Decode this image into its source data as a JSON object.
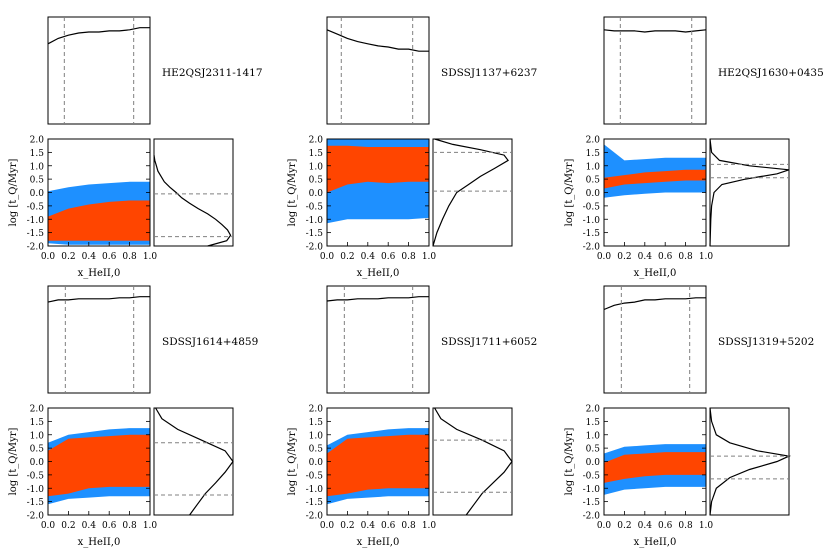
{
  "figure": {
    "xlabel": "x_HeII,0",
    "ylabel": "log [t_Q/Myr]",
    "x_ticks": [
      "0.0",
      "0.2",
      "0.4",
      "0.6",
      "0.8",
      "1.0"
    ],
    "y_ticks": [
      "-2.0",
      "-1.5",
      "-1.0",
      "-0.5",
      "0.0",
      "0.5",
      "1.0",
      "1.5",
      "2.0"
    ],
    "colors": {
      "outer_band": "#1E90FF",
      "inner_band": "#FF4500",
      "line": "#000000",
      "guide": "#808080"
    }
  },
  "chart_data": [
    {
      "type": "area",
      "quasar": "HE2QSJ2311-1417",
      "xlim": [
        0,
        1
      ],
      "ylim": [
        -2,
        2
      ],
      "x_marginal": {
        "xs": [
          0.0,
          0.1,
          0.2,
          0.3,
          0.4,
          0.5,
          0.6,
          0.7,
          0.8,
          0.9,
          1.0
        ],
        "ys": [
          0.75,
          0.8,
          0.83,
          0.85,
          0.86,
          0.86,
          0.87,
          0.87,
          0.88,
          0.9,
          0.9
        ],
        "ylim": [
          0,
          1
        ],
        "guides": [
          0.16,
          0.84
        ]
      },
      "outer_band": {
        "x": [
          0.0,
          0.2,
          0.4,
          0.6,
          0.8,
          1.0
        ],
        "upper": [
          0.05,
          0.2,
          0.3,
          0.35,
          0.4,
          0.4
        ],
        "lower": [
          -1.9,
          -1.95,
          -1.95,
          -1.95,
          -1.95,
          -1.95
        ]
      },
      "inner_band": {
        "x": [
          0.0,
          0.2,
          0.4,
          0.6,
          0.8,
          1.0
        ],
        "upper": [
          -0.9,
          -0.6,
          -0.45,
          -0.35,
          -0.3,
          -0.3
        ],
        "lower": [
          -1.8,
          -1.8,
          -1.8,
          -1.8,
          -1.8,
          -1.8
        ]
      },
      "y_marginal": {
        "ys": [
          -2.0,
          -1.8,
          -1.6,
          -1.4,
          -1.2,
          -1.0,
          -0.8,
          -0.6,
          -0.4,
          -0.2,
          0.0,
          0.2,
          0.4,
          0.6,
          0.8,
          1.0,
          1.2,
          1.4
        ],
        "xs": [
          0.68,
          0.92,
          0.97,
          0.93,
          0.86,
          0.78,
          0.68,
          0.56,
          0.45,
          0.35,
          0.28,
          0.2,
          0.13,
          0.09,
          0.05,
          0.03,
          0.01,
          0.0
        ],
        "guides": [
          -1.65,
          -0.05
        ]
      }
    },
    {
      "type": "area",
      "quasar": "SDSSJ1137+6237",
      "xlim": [
        0,
        1
      ],
      "ylim": [
        -2,
        2
      ],
      "x_marginal": {
        "xs": [
          0.0,
          0.1,
          0.2,
          0.3,
          0.4,
          0.5,
          0.6,
          0.7,
          0.8,
          0.9,
          1.0
        ],
        "ys": [
          0.88,
          0.84,
          0.8,
          0.77,
          0.75,
          0.73,
          0.72,
          0.7,
          0.7,
          0.68,
          0.68
        ],
        "ylim": [
          0,
          1
        ],
        "guides": [
          0.14,
          0.84
        ]
      },
      "outer_band": {
        "x": [
          0.0,
          0.2,
          0.4,
          0.6,
          0.8,
          1.0
        ],
        "upper": [
          2.0,
          2.0,
          2.0,
          2.0,
          2.0,
          2.0
        ],
        "lower": [
          -1.15,
          -1.0,
          -1.0,
          -1.0,
          -1.0,
          -0.95
        ]
      },
      "inner_band": {
        "x": [
          0.0,
          0.2,
          0.4,
          0.6,
          0.8,
          1.0
        ],
        "upper": [
          1.75,
          1.75,
          1.7,
          1.7,
          1.7,
          1.7
        ],
        "lower": [
          0.0,
          0.3,
          0.4,
          0.35,
          0.4,
          0.4
        ]
      },
      "y_marginal": {
        "ys": [
          -2.0,
          -1.5,
          -1.0,
          -0.5,
          0.0,
          0.3,
          0.6,
          0.9,
          1.2,
          1.4,
          1.6,
          1.8,
          2.0
        ],
        "xs": [
          0.0,
          0.05,
          0.12,
          0.2,
          0.3,
          0.45,
          0.6,
          0.78,
          0.95,
          0.9,
          0.6,
          0.25,
          0.02
        ],
        "guides": [
          1.5,
          0.05
        ]
      }
    },
    {
      "type": "area",
      "quasar": "HE2QSJ1630+0435",
      "xlim": [
        0,
        1
      ],
      "ylim": [
        -2,
        2
      ],
      "x_marginal": {
        "xs": [
          0.0,
          0.1,
          0.2,
          0.3,
          0.4,
          0.5,
          0.6,
          0.7,
          0.8,
          0.9,
          1.0
        ],
        "ys": [
          0.88,
          0.87,
          0.87,
          0.87,
          0.86,
          0.87,
          0.87,
          0.87,
          0.86,
          0.87,
          0.88
        ],
        "ylim": [
          0,
          1
        ],
        "guides": [
          0.16,
          0.86
        ]
      },
      "outer_band": {
        "x": [
          0.0,
          0.2,
          0.4,
          0.6,
          0.8,
          1.0
        ],
        "upper": [
          1.8,
          1.2,
          1.25,
          1.3,
          1.3,
          1.3
        ],
        "lower": [
          -0.2,
          -0.1,
          -0.05,
          0.0,
          0.0,
          0.0
        ]
      },
      "inner_band": {
        "x": [
          0.0,
          0.2,
          0.4,
          0.6,
          0.8,
          1.0
        ],
        "upper": [
          0.55,
          0.65,
          0.75,
          0.8,
          0.85,
          0.85
        ],
        "lower": [
          0.15,
          0.3,
          0.35,
          0.4,
          0.45,
          0.45
        ]
      },
      "y_marginal": {
        "ys": [
          -2.0,
          -1.0,
          -0.5,
          0.0,
          0.3,
          0.5,
          0.7,
          0.85,
          1.0,
          1.2,
          1.5,
          2.0
        ],
        "xs": [
          0.0,
          0.01,
          0.02,
          0.05,
          0.15,
          0.45,
          0.85,
          1.0,
          0.5,
          0.12,
          0.02,
          0.0
        ],
        "guides": [
          1.05,
          0.55
        ]
      }
    },
    {
      "type": "area",
      "quasar": "SDSSJ1614+4859",
      "xlim": [
        0,
        1
      ],
      "ylim": [
        -2,
        2
      ],
      "x_marginal": {
        "xs": [
          0.0,
          0.1,
          0.2,
          0.3,
          0.4,
          0.5,
          0.6,
          0.7,
          0.8,
          0.9,
          1.0
        ],
        "ys": [
          0.85,
          0.87,
          0.87,
          0.88,
          0.88,
          0.88,
          0.88,
          0.89,
          0.89,
          0.9,
          0.9
        ],
        "ylim": [
          0,
          1
        ],
        "guides": [
          0.17,
          0.84
        ]
      },
      "outer_band": {
        "x": [
          0.0,
          0.2,
          0.4,
          0.6,
          0.8,
          1.0
        ],
        "upper": [
          0.7,
          1.0,
          1.1,
          1.2,
          1.25,
          1.25
        ],
        "lower": [
          -1.6,
          -1.4,
          -1.35,
          -1.3,
          -1.3,
          -1.3
        ]
      },
      "inner_band": {
        "x": [
          0.0,
          0.2,
          0.4,
          0.6,
          0.8,
          1.0
        ],
        "upper": [
          0.4,
          0.85,
          0.9,
          0.95,
          1.0,
          1.0
        ],
        "lower": [
          -1.3,
          -1.2,
          -1.0,
          -0.95,
          -0.95,
          -0.95
        ]
      },
      "y_marginal": {
        "ys": [
          -2.0,
          -1.6,
          -1.2,
          -0.8,
          -0.4,
          0.0,
          0.4,
          0.8,
          1.2,
          1.6,
          2.0
        ],
        "xs": [
          0.45,
          0.55,
          0.65,
          0.78,
          0.9,
          1.0,
          0.9,
          0.6,
          0.3,
          0.1,
          0.02
        ],
        "guides": [
          0.7,
          -1.25
        ]
      }
    },
    {
      "type": "area",
      "quasar": "SDSSJ1711+6052",
      "xlim": [
        0,
        1
      ],
      "ylim": [
        -2,
        2
      ],
      "x_marginal": {
        "xs": [
          0.0,
          0.1,
          0.2,
          0.3,
          0.4,
          0.5,
          0.6,
          0.7,
          0.8,
          0.9,
          1.0
        ],
        "ys": [
          0.86,
          0.87,
          0.87,
          0.88,
          0.88,
          0.88,
          0.89,
          0.89,
          0.89,
          0.9,
          0.9
        ],
        "ylim": [
          0,
          1
        ],
        "guides": [
          0.17,
          0.84
        ]
      },
      "outer_band": {
        "x": [
          0.0,
          0.2,
          0.4,
          0.6,
          0.8,
          1.0
        ],
        "upper": [
          0.6,
          1.0,
          1.1,
          1.2,
          1.25,
          1.25
        ],
        "lower": [
          -1.6,
          -1.4,
          -1.35,
          -1.3,
          -1.3,
          -1.3
        ]
      },
      "inner_band": {
        "x": [
          0.0,
          0.2,
          0.4,
          0.6,
          0.8,
          1.0
        ],
        "upper": [
          0.3,
          0.85,
          0.9,
          0.95,
          1.0,
          1.0
        ],
        "lower": [
          -1.3,
          -1.2,
          -1.05,
          -1.0,
          -1.0,
          -1.0
        ]
      },
      "y_marginal": {
        "ys": [
          -2.0,
          -1.6,
          -1.2,
          -0.8,
          -0.4,
          0.0,
          0.4,
          0.8,
          1.2,
          1.6,
          2.0
        ],
        "xs": [
          0.42,
          0.52,
          0.62,
          0.76,
          0.9,
          1.0,
          0.9,
          0.62,
          0.3,
          0.1,
          0.02
        ],
        "guides": [
          0.8,
          -1.15
        ]
      }
    },
    {
      "type": "area",
      "quasar": "SDSSJ1319+5202",
      "xlim": [
        0,
        1
      ],
      "ylim": [
        -2,
        2
      ],
      "x_marginal": {
        "xs": [
          0.0,
          0.1,
          0.2,
          0.3,
          0.4,
          0.5,
          0.6,
          0.7,
          0.8,
          0.9,
          1.0
        ],
        "ys": [
          0.78,
          0.82,
          0.84,
          0.85,
          0.87,
          0.87,
          0.88,
          0.88,
          0.88,
          0.89,
          0.89
        ],
        "ylim": [
          0,
          1
        ],
        "guides": [
          0.17,
          0.84
        ]
      },
      "outer_band": {
        "x": [
          0.0,
          0.2,
          0.4,
          0.6,
          0.8,
          1.0
        ],
        "upper": [
          0.3,
          0.55,
          0.6,
          0.65,
          0.65,
          0.65
        ],
        "lower": [
          -1.25,
          -1.05,
          -1.0,
          -0.95,
          -0.95,
          -0.95
        ]
      },
      "inner_band": {
        "x": [
          0.0,
          0.2,
          0.4,
          0.6,
          0.8,
          1.0
        ],
        "upper": [
          -0.05,
          0.25,
          0.3,
          0.35,
          0.35,
          0.35
        ],
        "lower": [
          -0.8,
          -0.65,
          -0.55,
          -0.5,
          -0.5,
          -0.5
        ]
      },
      "y_marginal": {
        "ys": [
          -2.0,
          -1.5,
          -1.0,
          -0.6,
          -0.3,
          0.0,
          0.2,
          0.4,
          0.7,
          1.0,
          1.5,
          2.0
        ],
        "xs": [
          0.0,
          0.02,
          0.08,
          0.25,
          0.5,
          0.85,
          1.0,
          0.6,
          0.25,
          0.08,
          0.02,
          0.0
        ],
        "guides": [
          0.2,
          -0.65
        ]
      }
    }
  ]
}
